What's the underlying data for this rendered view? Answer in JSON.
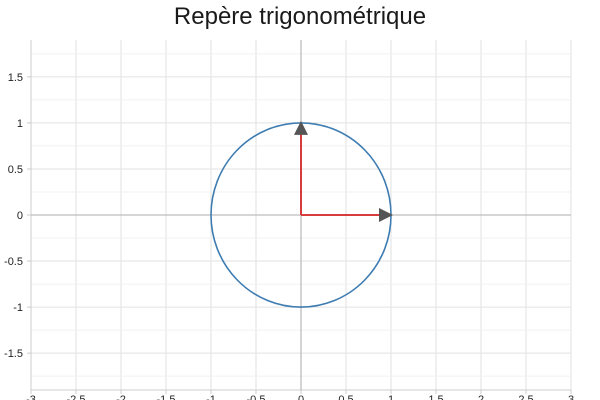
{
  "chart_data": {
    "type": "line",
    "title": "Repère trigonométrique",
    "xlabel": "",
    "ylabel": "",
    "xlim": [
      -3,
      3
    ],
    "ylim": [
      -1.9,
      1.9
    ],
    "grid": true,
    "x_ticks": [
      -3,
      -2.5,
      -2,
      -1.5,
      -1,
      -0.5,
      0,
      0.5,
      1,
      1.5,
      2,
      2.5,
      3
    ],
    "x_tick_labels": [
      "-3",
      "-2.5",
      "-2",
      "-1.5",
      "-1",
      "-0.5",
      "0",
      "0.5",
      "1",
      "1.5",
      "2",
      "2.5",
      "3"
    ],
    "y_ticks": [
      -1.5,
      -1,
      -0.5,
      0,
      0.5,
      1,
      1.5
    ],
    "y_tick_labels": [
      "-1.5",
      "-1",
      "-0.5",
      "0",
      "0.5",
      "1",
      "1.5"
    ],
    "series": [
      {
        "kind": "circle",
        "center": [
          0,
          0
        ],
        "radius": 1,
        "color": "#3e7cb1"
      },
      {
        "kind": "vector",
        "from": [
          0,
          0
        ],
        "to": [
          1,
          0
        ],
        "color": "#d63c3c"
      },
      {
        "kind": "vector",
        "from": [
          0,
          0
        ],
        "to": [
          0,
          1
        ],
        "color": "#d63c3c"
      }
    ],
    "colors": {
      "grid": "#e2e2e2",
      "axis": "#bdbdbd",
      "frame": "#cccccc"
    }
  }
}
